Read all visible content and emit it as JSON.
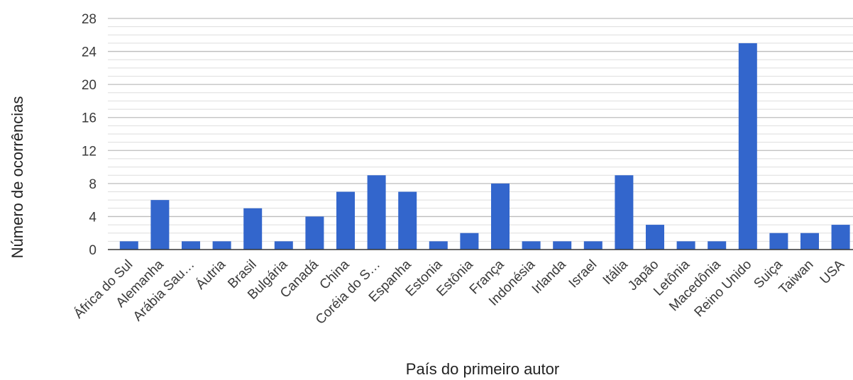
{
  "chart_data": {
    "type": "bar",
    "title": "",
    "xlabel": "País do primeiro autor",
    "ylabel": "Número de ocorrências",
    "ylim": [
      0,
      28
    ],
    "yticks": [
      0,
      4,
      8,
      12,
      16,
      20,
      24,
      28
    ],
    "minor_grid_step": 1,
    "grid": true,
    "legend": "none",
    "bar_color": "#3366cc",
    "categories": [
      "África do Sul",
      "Alemanha",
      "Arábia Sau…",
      "Áutria",
      "Brasil",
      "Bulgária",
      "Canadá",
      "China",
      "Coréia do S…",
      "Espanha",
      "Estonia",
      "Estônia",
      "França",
      "Indonésia",
      "Irlanda",
      "Israel",
      "Itália",
      "Japão",
      "Letônia",
      "Macedônia",
      "Reino Unido",
      "Suiça",
      "Taiwan",
      "USA"
    ],
    "values": [
      1,
      6,
      1,
      1,
      5,
      1,
      4,
      7,
      9,
      7,
      1,
      2,
      8,
      1,
      1,
      1,
      9,
      3,
      1,
      1,
      25,
      2,
      2,
      3
    ]
  }
}
